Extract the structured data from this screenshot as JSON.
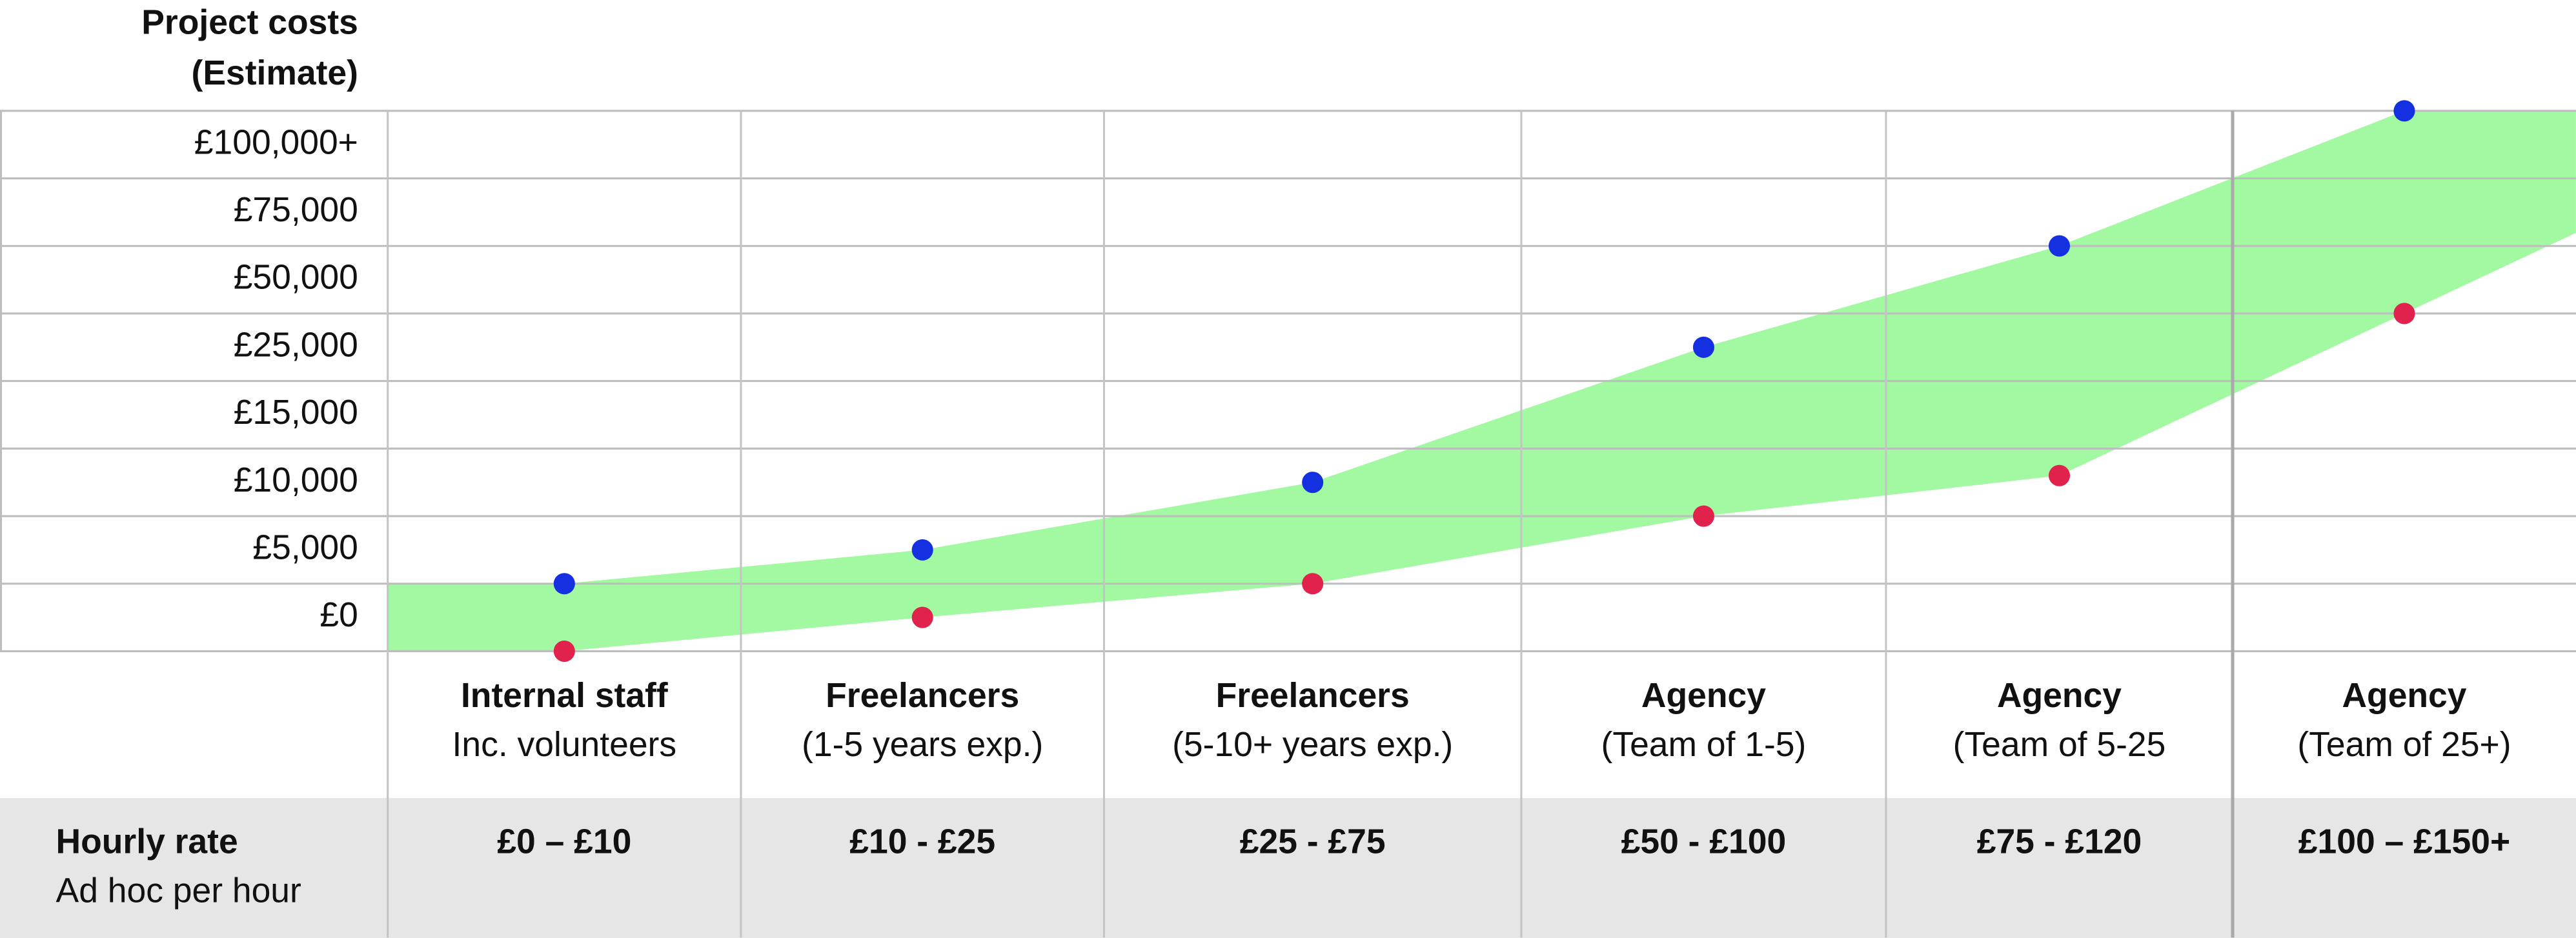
{
  "chart_data": {
    "type": "range",
    "title": "Project costs",
    "subtitle": "(Estimate)",
    "categories": [
      "Internal staff",
      "Freelancers",
      "Freelancers",
      "Agency",
      "Agency",
      "Agency"
    ],
    "category_details": [
      "Inc. volunteers",
      "(1-5 years exp.)",
      "(5-10+ years exp.)",
      "(Team of 1-5)",
      "(Team of 5-25",
      "(Team of 25+)"
    ],
    "rate_label": "Hourly rate",
    "rate_sublabel": "Ad hoc per hour",
    "rates": [
      "£0 – £10",
      "£10 - £25",
      "£25 - £75",
      "£50 - £100",
      "£75 - £120",
      "£100 – £150+"
    ],
    "ylim": [
      -2500,
      112500
    ],
    "yticks": [
      {
        "value": 0,
        "label": "£0"
      },
      {
        "value": 5000,
        "label": "£5,000"
      },
      {
        "value": 10000,
        "label": "£10,000"
      },
      {
        "value": 15000,
        "label": "£15,000"
      },
      {
        "value": 25000,
        "label": "£25,000"
      },
      {
        "value": 50000,
        "label": "£50,000"
      },
      {
        "value": 75000,
        "label": "£75,000"
      },
      {
        "value": 100000,
        "label": "£100,000+"
      }
    ],
    "band_color": "#a2f9a2",
    "series": [
      {
        "color": "#1530e0",
        "values": [
          2500,
          5000,
          10000,
          25000,
          62500,
          112500
        ]
      },
      {
        "color": "#e0224c",
        "values": [
          -2500,
          0,
          2500,
          7500,
          10500,
          37500
        ]
      }
    ]
  }
}
